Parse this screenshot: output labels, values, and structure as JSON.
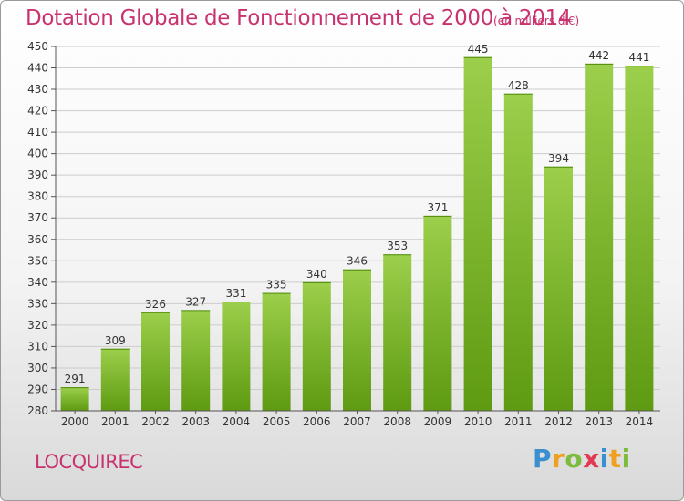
{
  "header": {
    "title": "Dotation Globale de Fonctionnement de 2000 à 2014",
    "subtitle": "(en milliers d'€)"
  },
  "footer": {
    "commune": "LOCQUIREC",
    "logo": [
      "P",
      "r",
      "o",
      "x",
      "i",
      "t",
      "i"
    ]
  },
  "colors": {
    "bar_top": "#9ccf4b",
    "bar_bottom": "#5e9a12",
    "title": "#c8326e",
    "grid": "#cccccc"
  },
  "chart_data": {
    "type": "bar",
    "title": "Dotation Globale de Fonctionnement de 2000 à 2014",
    "subtitle": "(en milliers d'€)",
    "categories": [
      "2000",
      "2001",
      "2002",
      "2003",
      "2004",
      "2005",
      "2006",
      "2007",
      "2008",
      "2009",
      "2010",
      "2011",
      "2012",
      "2013",
      "2014"
    ],
    "values": [
      291,
      309,
      326,
      327,
      331,
      335,
      340,
      346,
      353,
      371,
      445,
      428,
      394,
      442,
      441
    ],
    "ylim": [
      280,
      450
    ],
    "ytick_step": 10,
    "grid": true,
    "data_labels": true
  }
}
